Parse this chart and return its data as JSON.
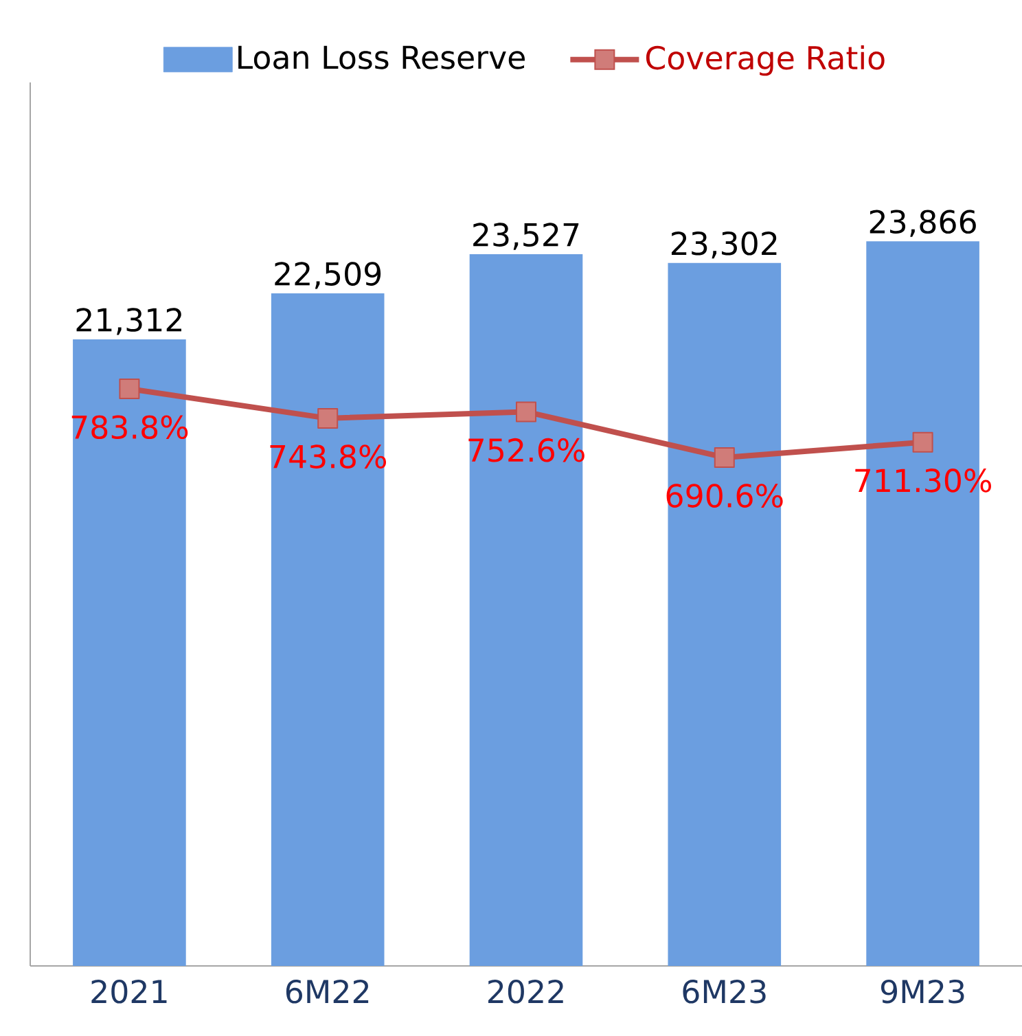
{
  "chart_data": {
    "type": "bar",
    "categories": [
      "2021",
      "6M22",
      "2022",
      "6M23",
      "9M23"
    ],
    "series": [
      {
        "name": "Loan Loss Reserve",
        "color": "#6b9ee0",
        "values": [
          21312,
          22509,
          23527,
          23302,
          23866
        ],
        "value_labels": [
          "21,312",
          "22,509",
          "23,527",
          "23,302",
          "23,866"
        ]
      },
      {
        "name": "Coverage Ratio",
        "type": "line",
        "axis": "y2",
        "color": "#c0504d",
        "values": [
          783.8,
          743.8,
          752.6,
          690.6,
          711.3
        ],
        "value_labels": [
          "783.8%",
          "743.8%",
          "752.6%",
          "690.6%",
          "711.30%"
        ]
      }
    ],
    "marker": "square",
    "ylim": [
      5000,
      28000
    ],
    "y2lim": [
      0,
      1200
    ],
    "tick_labels": "x",
    "legend": "top"
  }
}
